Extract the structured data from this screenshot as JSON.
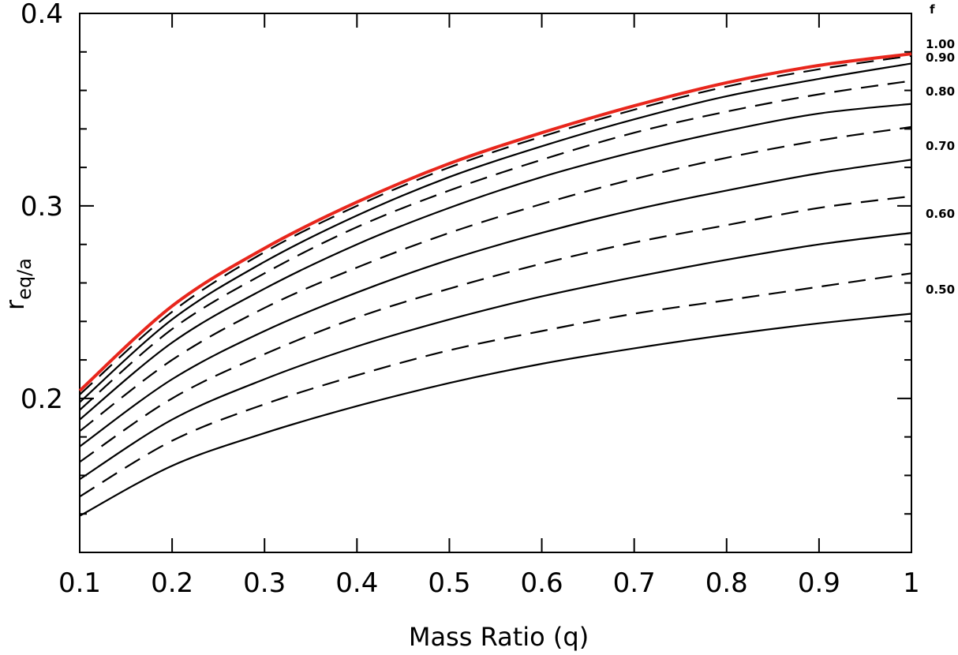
{
  "chart_data": {
    "type": "line",
    "xlabel": "Mass Ratio (q)",
    "ylabel_main": "r",
    "ylabel_sub": "eq/a",
    "xlim": [
      0.1,
      1.0
    ],
    "ylim": [
      0.12,
      0.4
    ],
    "x_ticks": [
      0.1,
      0.2,
      0.3,
      0.4,
      0.5,
      0.6,
      0.7,
      0.8,
      0.9,
      1.0
    ],
    "x_tick_labels": [
      "0.1",
      "0.2",
      "0.3",
      "0.4",
      "0.5",
      "0.6",
      "0.7",
      "0.8",
      "0.9",
      "1"
    ],
    "y_ticks": [
      0.2,
      0.3,
      0.4
    ],
    "y_tick_labels": [
      "0.2",
      "0.3",
      "0.4"
    ],
    "y_minor_ticks": [
      0.14,
      0.16,
      0.18,
      0.22,
      0.24,
      0.26,
      0.28,
      0.32,
      0.34,
      0.36,
      0.38
    ],
    "right_label_header": "f",
    "colors": {
      "highlight": "#e8261c",
      "line": "#000000"
    },
    "x": [
      0.1,
      0.2,
      0.3,
      0.4,
      0.5,
      0.6,
      0.7,
      0.8,
      0.9,
      1.0
    ],
    "series": [
      {
        "name": "0.50",
        "style": "solid",
        "values": [
          0.139,
          0.165,
          0.182,
          0.196,
          0.208,
          0.218,
          0.226,
          0.233,
          0.239,
          0.244
        ]
      },
      {
        "name": "",
        "style": "dashed",
        "values": [
          0.149,
          0.178,
          0.197,
          0.212,
          0.225,
          0.235,
          0.244,
          0.251,
          0.258,
          0.265
        ]
      },
      {
        "name": "0.60",
        "style": "solid",
        "values": [
          0.158,
          0.189,
          0.21,
          0.227,
          0.241,
          0.253,
          0.263,
          0.272,
          0.28,
          0.286
        ]
      },
      {
        "name": "",
        "style": "dashed",
        "values": [
          0.167,
          0.2,
          0.223,
          0.242,
          0.257,
          0.27,
          0.281,
          0.29,
          0.299,
          0.305
        ]
      },
      {
        "name": "0.70",
        "style": "solid",
        "values": [
          0.175,
          0.21,
          0.235,
          0.255,
          0.272,
          0.286,
          0.298,
          0.308,
          0.317,
          0.324
        ]
      },
      {
        "name": "",
        "style": "dashed",
        "values": [
          0.183,
          0.22,
          0.247,
          0.268,
          0.286,
          0.301,
          0.314,
          0.325,
          0.334,
          0.341
        ]
      },
      {
        "name": "0.80",
        "style": "solid",
        "values": [
          0.189,
          0.229,
          0.257,
          0.28,
          0.299,
          0.315,
          0.328,
          0.339,
          0.348,
          0.353
        ]
      },
      {
        "name": "",
        "style": "dashed",
        "values": [
          0.194,
          0.236,
          0.265,
          0.289,
          0.308,
          0.324,
          0.338,
          0.349,
          0.358,
          0.365
        ]
      },
      {
        "name": "0.90",
        "style": "solid",
        "values": [
          0.198,
          0.241,
          0.271,
          0.295,
          0.315,
          0.331,
          0.345,
          0.357,
          0.366,
          0.374
        ]
      },
      {
        "name": "",
        "style": "dashed",
        "values": [
          0.202,
          0.245,
          0.276,
          0.3,
          0.32,
          0.336,
          0.35,
          0.362,
          0.371,
          0.378
        ]
      },
      {
        "name": "1.00",
        "style": "red",
        "values": [
          0.204,
          0.248,
          0.278,
          0.302,
          0.322,
          0.338,
          0.352,
          0.364,
          0.373,
          0.379
        ]
      }
    ]
  }
}
